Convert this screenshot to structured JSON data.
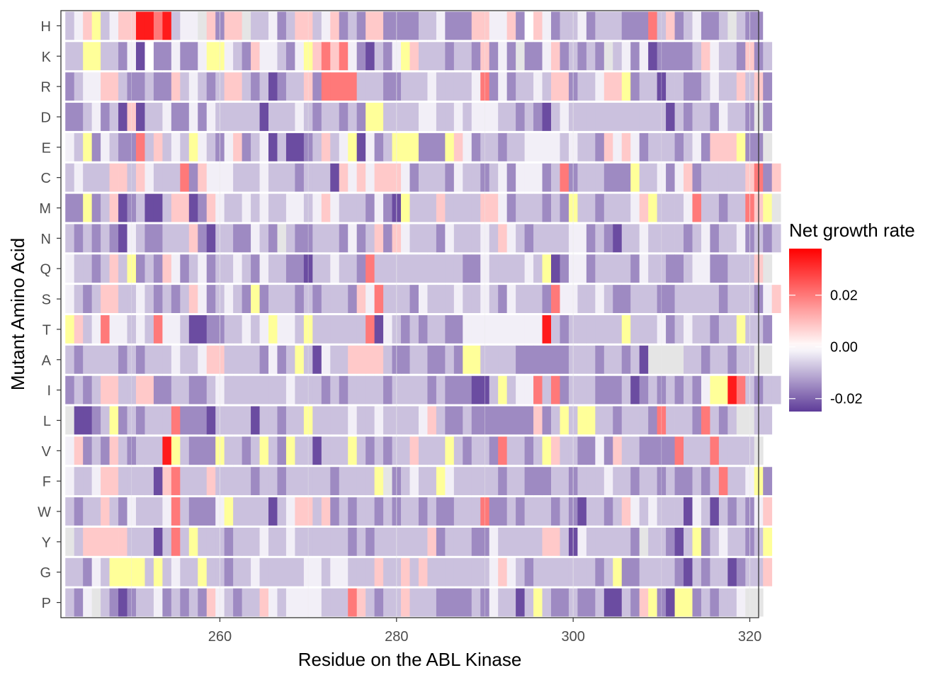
{
  "chart_data": {
    "type": "heatmap",
    "xlabel": "Residue on the ABL Kinase",
    "ylabel": "Mutant Amino Acid",
    "x_range": [
      242,
      321
    ],
    "x_ticks": [
      260,
      280,
      300,
      320
    ],
    "y_categories": [
      "H",
      "K",
      "R",
      "D",
      "E",
      "C",
      "M",
      "N",
      "Q",
      "S",
      "T",
      "A",
      "I",
      "L",
      "V",
      "F",
      "W",
      "Y",
      "G",
      "P"
    ],
    "grid": true,
    "legend": {
      "title": "Net growth rate",
      "ticks": [
        0.02,
        0.0,
        -0.02
      ],
      "tick_labels": [
        "0.02",
        "0.00",
        "-0.02"
      ],
      "min": -0.025,
      "max": 0.038,
      "position": "right"
    },
    "colors": {
      "low": "#5e3c99",
      "mid": "#ffffff",
      "high": "#ff0000",
      "wildtype": "#ffff99",
      "missing": "#e5e5e5"
    },
    "value_matrix_note": "",
    "rows": {
      "H": "vwoyvwooRRORvwwgomoogvvwmvoovwomvmoommmmvvwmmmoowwomlowmvvwmvvvmmmOvomvwmmvgvmmh",
      "K": "vvyyvvmwMlmmwmmwyywvmowwvmwyoOoOwmMvmwyovvvmvvmomwmgmmwomvmvmgvwmwMmmmmvowvvmomv",
      "R": "mvwwoovmmvmmovwvmvoovmvMmvvomOOOOvvvmmvvvwvvvvwOmwmvvwvoomvvwooymvvMvvmmvwvvovom",
      "D": "mmvwmvMoMvvwmmwmwvvvvvMvvvwvmvvmvmyyvvvvwwvvwvwwwvvmvmMvwvvvvvvvvvvvMvmvvmwvvmgm",
      "E": "wvymwvmmOvovwvywvmwomvwMvMMmvovwyMwmvyyymmmyowmvvmvvwwwwvwvvmowowmvvvmvwmoooymmg",
      "C": "vwvvvoovowvvvOmowwwvvvwvvvmvvvMowowooowmvvvmwvvmvwmwwwmvOmvvvmmmyvvwmwomvvvvvoOmo",
      "M": "mmymvoMmvMMvooMmowvvwvwvvwwvwowvvvmwmMyvvvovvvvoowmvvvmvmyvvmvvvwoyvvvwOvvmvvOoyg",
      "N": "vmvmvmMwvmmvvvomMvvmmwvmgvmmvvvmwmvomowvvvmwvvvwvowvmvvvvwwmvmMvvwvvvvmvwmvvwmvmv",
      "Q": "wvvmvovymvmowmvwmvvwvmwvvmmMvvwvvmOvvvvvvvvvvmmwvvvvwvyMmwwmvvvvmwvvmmvwwmmvvvog",
      "S": "wvmvoovvwvmvmvowmvwvmymvvvmvmvvvmowOvvvmwvvvwvvwvmwvvvmOwwvvwvmmvvvmmvvvvvmvvvmwo",
      "T": "yovwOwwvwvOwwvMMmmvvwvwywwvyvvvvvvOMwvmvmvvmmwwwwwwwwwRvmvvvvvvyvvvwmvwvvmvvyvvm",
      "A": "vmvvvvmvmvvvwvvwoovvvvmwmvyvMwvvoooovmmvvmmvmyyvvvvmmmmmmvvvmvvmvMggggvvmvvmvvgg",
      "I": "mvmvoovvoommvvmmvwvvvvvvvwvvvmvmvvvvmvvvvmvmmmMMvyvwwOvOmvvvmmmvMmvmvmvmwyyROvmvv",
      "L": "gMMmvymvmvvvOmmmMvvvvMvvmvvyvvvvwvvwvvvvwovmmvmmmmmmmomvyvyyvvmvvvmOvvvmOvmvggvv",
      "V": "womvmovmvvvRyvmmmyvvmvyvmyvvMvvvyvmvmvvovvvyvmvvmOvvmvyovvmmwmovvmmmmOvvvOvvvvg",
      "F": "wvvwoovvvvMoOvvvovvvvmvvmvvvvvmvvvvygmvwvvywvvvvvmvvmmmvvmvvvwvvmvvmvmmvmvOvvwym",
      "W": "vmvvovmwvvvwOvmmmwyvvvvMvwoovomvmvvmvmvvmvmmvvvOmmvmvvvmvmMvvmvowvwvvvMwvMvmvmwo",
      "Y": "gvooooovvvMvOvyvvvmvvvwvvwvvvvvvmvmvvvvvvomvvvmmwvvvvvoovMwvvvvvmgvvmMvymvwvvmvy",
      "G": "vvmwvyyyyvyvwvvyvvmvvwvvvvvwwvwwvvvovvovovvvvvvvwowvmvvvvvvvmvymmvvvvmMvmvvMmvvo",
      "P": "vmwgvmMmvvwmvmvmowvmvvowvwwwwvvvOovmvvovvvmmmmvmwvvMvyvmmvmmvMMvmoymMyymvmvvwgg"
    }
  }
}
